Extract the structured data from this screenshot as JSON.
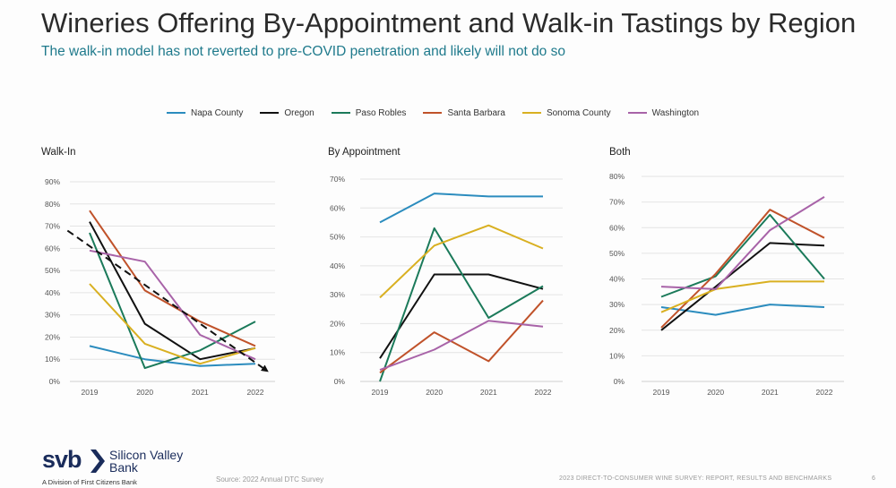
{
  "header": {
    "title": "Wineries Offering By-Appointment and Walk-in Tastings by Region",
    "subtitle": "The walk-in model has not reverted to pre-COVID penetration and likely will not do so"
  },
  "footer": {
    "logo_mark": "svb",
    "logo_line1": "Silicon Valley",
    "logo_line2": "Bank",
    "logo_division": "A Division of First Citizens Bank",
    "source": "Source: 2022 Annual DTC Survey",
    "report_title": "2023 DIRECT-TO-CONSUMER WINE SURVEY: REPORT, RESULTS AND BENCHMARKS",
    "page_number": "6"
  },
  "colors": {
    "accent": "#1f7a8c",
    "brand": "#1a2c5b"
  },
  "chart_data": [
    {
      "type": "line",
      "title": "Walk-In",
      "categories": [
        "2019",
        "2020",
        "2021",
        "2022"
      ],
      "ylim": [
        0,
        90
      ],
      "yticks": [
        0,
        10,
        20,
        30,
        40,
        50,
        60,
        70,
        80,
        90
      ],
      "ytick_labels": [
        "0%",
        "10%",
        "20%",
        "30%",
        "40%",
        "50%",
        "60%",
        "70%",
        "80%",
        "90%"
      ],
      "grid": true,
      "legend": "top",
      "series": [
        {
          "name": "Napa County",
          "color": "#2b8cbe",
          "values": [
            16,
            10,
            7,
            8
          ]
        },
        {
          "name": "Oregon",
          "color": "#111111",
          "values": [
            72,
            26,
            10,
            15
          ]
        },
        {
          "name": "Paso Robles",
          "color": "#1b7a5a",
          "values": [
            67,
            6,
            14,
            27
          ]
        },
        {
          "name": "Santa Barbara",
          "color": "#c0522a",
          "values": [
            77,
            41,
            27,
            16
          ]
        },
        {
          "name": "Sonoma County",
          "color": "#d9b021",
          "values": [
            44,
            17,
            8,
            15
          ]
        },
        {
          "name": "Washington",
          "color": "#a863a8",
          "values": [
            59,
            54,
            21,
            10
          ]
        }
      ],
      "trend_arrow": {
        "from": [
          -0.4,
          68
        ],
        "to": [
          3.2,
          5
        ]
      }
    },
    {
      "type": "line",
      "title": "By Appointment",
      "categories": [
        "2019",
        "2020",
        "2021",
        "2022"
      ],
      "ylim": [
        0,
        70
      ],
      "yticks": [
        0,
        10,
        20,
        30,
        40,
        50,
        60,
        70
      ],
      "ytick_labels": [
        "0%",
        "10%",
        "20%",
        "30%",
        "40%",
        "50%",
        "60%",
        "70%"
      ],
      "grid": true,
      "series": [
        {
          "name": "Napa County",
          "color": "#2b8cbe",
          "values": [
            55,
            65,
            64,
            64
          ]
        },
        {
          "name": "Oregon",
          "color": "#111111",
          "values": [
            8,
            37,
            37,
            32
          ]
        },
        {
          "name": "Paso Robles",
          "color": "#1b7a5a",
          "values": [
            0,
            53,
            22,
            33
          ]
        },
        {
          "name": "Santa Barbara",
          "color": "#c0522a",
          "values": [
            3,
            17,
            7,
            28
          ]
        },
        {
          "name": "Sonoma County",
          "color": "#d9b021",
          "values": [
            29,
            47,
            54,
            46
          ]
        },
        {
          "name": "Washington",
          "color": "#a863a8",
          "values": [
            4,
            11,
            21,
            19
          ]
        }
      ]
    },
    {
      "type": "line",
      "title": "Both",
      "categories": [
        "2019",
        "2020",
        "2021",
        "2022"
      ],
      "ylim": [
        0,
        80
      ],
      "yticks": [
        0,
        10,
        20,
        30,
        40,
        50,
        60,
        70,
        80
      ],
      "ytick_labels": [
        "0%",
        "10%",
        "20%",
        "30%",
        "40%",
        "50%",
        "60%",
        "70%",
        "80%"
      ],
      "grid": true,
      "series": [
        {
          "name": "Napa County",
          "color": "#2b8cbe",
          "values": [
            29,
            26,
            30,
            29
          ]
        },
        {
          "name": "Oregon",
          "color": "#111111",
          "values": [
            20,
            37,
            54,
            53
          ]
        },
        {
          "name": "Paso Robles",
          "color": "#1b7a5a",
          "values": [
            33,
            41,
            65,
            40
          ]
        },
        {
          "name": "Santa Barbara",
          "color": "#c0522a",
          "values": [
            21,
            42,
            67,
            56
          ]
        },
        {
          "name": "Sonoma County",
          "color": "#d9b021",
          "values": [
            27,
            36,
            39,
            39
          ]
        },
        {
          "name": "Washington",
          "color": "#a863a8",
          "values": [
            37,
            36,
            59,
            72
          ]
        }
      ]
    }
  ]
}
